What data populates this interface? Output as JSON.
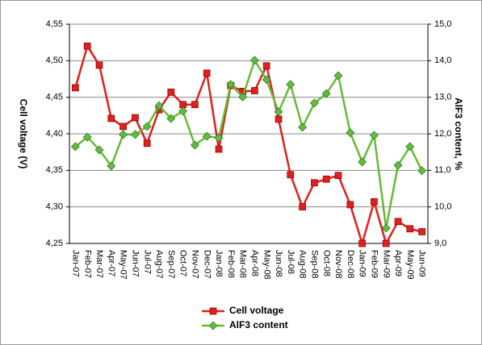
{
  "chart_data": {
    "type": "line",
    "y_label": "Cell voltage (V)",
    "y2_label": "AlF3 content, %",
    "categories": [
      "Jan-07",
      "Feb-07",
      "Mar-07",
      "Apr-07",
      "May-07",
      "Jun-07",
      "Jul-07",
      "Aug-07",
      "Sep-07",
      "Oct-07",
      "Nov-07",
      "Dec-07",
      "Jan-08",
      "Feb-08",
      "Mar-08",
      "Apr-08",
      "May-08",
      "Jun-08",
      "Jul-08",
      "Aug-08",
      "Sep-08",
      "Oct-08",
      "Nov-08",
      "Dec-08",
      "Jan-09",
      "Feb-09",
      "Mar-09",
      "Apr-09",
      "May-09",
      "Jun-09"
    ],
    "series": [
      {
        "name": "Cell voltage",
        "color": "#e0201e",
        "marker": "square",
        "values": [
          4.463,
          4.52,
          4.494,
          4.421,
          4.41,
          4.422,
          4.387,
          4.433,
          4.457,
          4.44,
          4.44,
          4.483,
          4.379,
          4.466,
          4.458,
          4.459,
          4.493,
          4.42,
          4.344,
          4.3,
          4.333,
          4.338,
          4.343,
          4.303,
          4.25,
          4.307,
          4.25,
          4.28,
          4.27,
          4.266
        ]
      },
      {
        "name": "AlF3 content",
        "color": "#66bb33",
        "marker": "diamond",
        "axis": "y2",
        "values": [
          11.65,
          11.91,
          11.56,
          11.12,
          11.98,
          11.98,
          12.2,
          12.77,
          12.42,
          12.62,
          11.69,
          11.93,
          11.89,
          13.35,
          13.01,
          14.01,
          13.48,
          12.6,
          13.35,
          12.18,
          12.84,
          13.1,
          13.59,
          12.03,
          11.23,
          11.96,
          9.42,
          11.14,
          11.65,
          10.99
        ]
      }
    ],
    "ylim": [
      4.25,
      4.55
    ],
    "yticks": [
      {
        "value": 4.25,
        "label": "4,25"
      },
      {
        "value": 4.3,
        "label": "4,30"
      },
      {
        "value": 4.35,
        "label": "4,35"
      },
      {
        "value": 4.4,
        "label": "4,40"
      },
      {
        "value": 4.45,
        "label": "4,45"
      },
      {
        "value": 4.5,
        "label": "4,50"
      },
      {
        "value": 4.55,
        "label": "4,55"
      }
    ],
    "y2lim": [
      9,
      15
    ],
    "y2ticks": [
      {
        "value": 9,
        "label": "9,0"
      },
      {
        "value": 10,
        "label": "10,0"
      },
      {
        "value": 11,
        "label": "11,0"
      },
      {
        "value": 12,
        "label": "12,0"
      },
      {
        "value": 13,
        "label": "13,0"
      },
      {
        "value": 14,
        "label": "14,0"
      },
      {
        "value": 15,
        "label": "15,0"
      }
    ],
    "grid": true,
    "legend": "bottom"
  }
}
